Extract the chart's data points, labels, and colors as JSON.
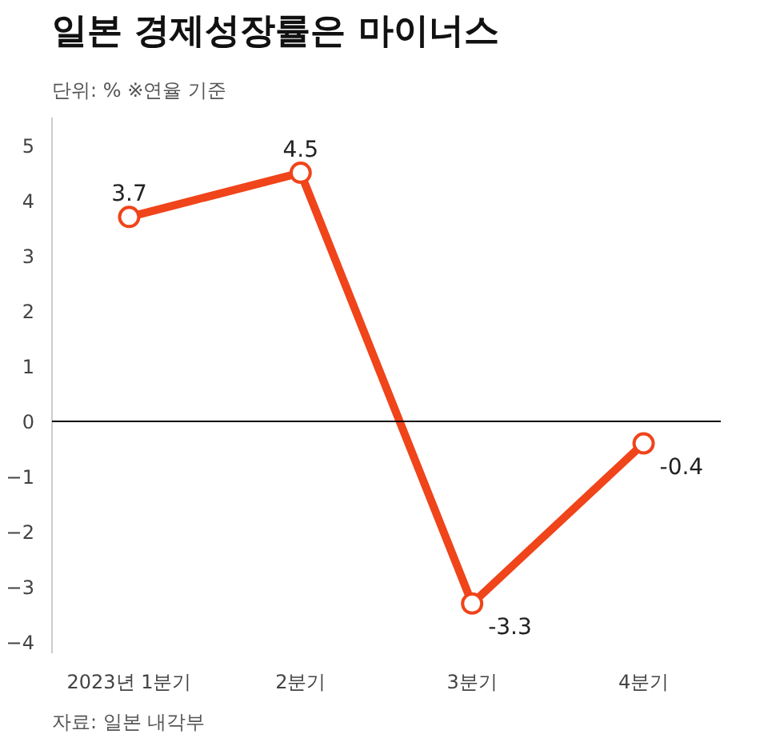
{
  "chart_data": {
    "type": "line",
    "title": "일본 경제성장률은 마이너스",
    "subtitle": "단위: %   ※연율 기준",
    "categories": [
      "2023년 1분기",
      "2분기",
      "3분기",
      "4분기"
    ],
    "series": [
      {
        "color": "#f0441a",
        "values": [
          3.7,
          4.5,
          -3.3,
          -0.4
        ]
      }
    ],
    "ylim": [
      -4.2,
      5.5
    ],
    "yticks": [
      -4,
      -3,
      -2,
      -1,
      0,
      1,
      2,
      3,
      4,
      5
    ],
    "ref_lines": [
      {
        "axis": "y",
        "value": 0,
        "color": "#000000"
      }
    ],
    "data_labels": true,
    "marker": "circle",
    "line_style": "solid",
    "grid": false,
    "annotations": [
      "자료: 일본 내각부"
    ]
  }
}
